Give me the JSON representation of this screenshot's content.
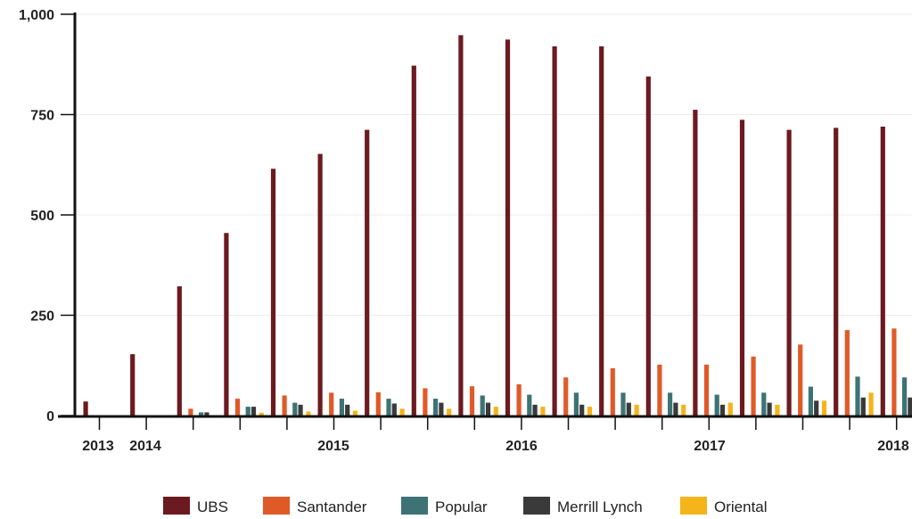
{
  "chart_data": {
    "type": "bar",
    "title": "",
    "xlabel": "",
    "ylabel": "",
    "ylim": [
      0,
      1000
    ],
    "y_ticks": [
      "0",
      "250",
      "500",
      "750",
      "1,000"
    ],
    "x_tick_labels": [
      "2013",
      "2014",
      "2015",
      "2016",
      "2017",
      "2018"
    ],
    "grid": "horizontal",
    "legend_position": "bottom",
    "categories": [
      "2013 Q3",
      "2013 Q4",
      "2014 Q1",
      "2014 Q2",
      "2014 Q3",
      "2014 Q4",
      "2015 Q1",
      "2015 Q2",
      "2015 Q3",
      "2015 Q4",
      "2016 Q1",
      "2016 Q2",
      "2016 Q3",
      "2016 Q4",
      "2017 Q1",
      "2017 Q2",
      "2017 Q3",
      "2017 Q4",
      "2018 Q1"
    ],
    "series": [
      {
        "name": "UBS",
        "color": "#6b1a1f",
        "values": [
          35,
          153,
          322,
          455,
          615,
          652,
          712,
          872,
          948,
          937,
          920,
          920,
          845,
          762,
          737,
          712,
          717,
          720,
          0
        ]
      },
      {
        "name": "Santander",
        "color": "#e05a28",
        "values": [
          0,
          0,
          17,
          42,
          50,
          57,
          58,
          68,
          73,
          78,
          95,
          118,
          127,
          127,
          147,
          177,
          213,
          217,
          0
        ]
      },
      {
        "name": "Popular",
        "color": "#3d7375",
        "values": [
          0,
          0,
          8,
          22,
          32,
          42,
          42,
          42,
          50,
          52,
          57,
          57,
          57,
          52,
          57,
          72,
          97,
          95,
          0
        ]
      },
      {
        "name": "Merrill Lynch",
        "color": "#3a3a3a",
        "values": [
          0,
          0,
          8,
          22,
          27,
          27,
          30,
          32,
          32,
          27,
          27,
          32,
          32,
          27,
          32,
          37,
          45,
          45,
          0
        ]
      },
      {
        "name": "Oriental",
        "color": "#f4b41a",
        "values": [
          0,
          0,
          0,
          7,
          10,
          12,
          17,
          17,
          22,
          22,
          22,
          27,
          27,
          32,
          27,
          37,
          57,
          62,
          0
        ]
      }
    ]
  }
}
